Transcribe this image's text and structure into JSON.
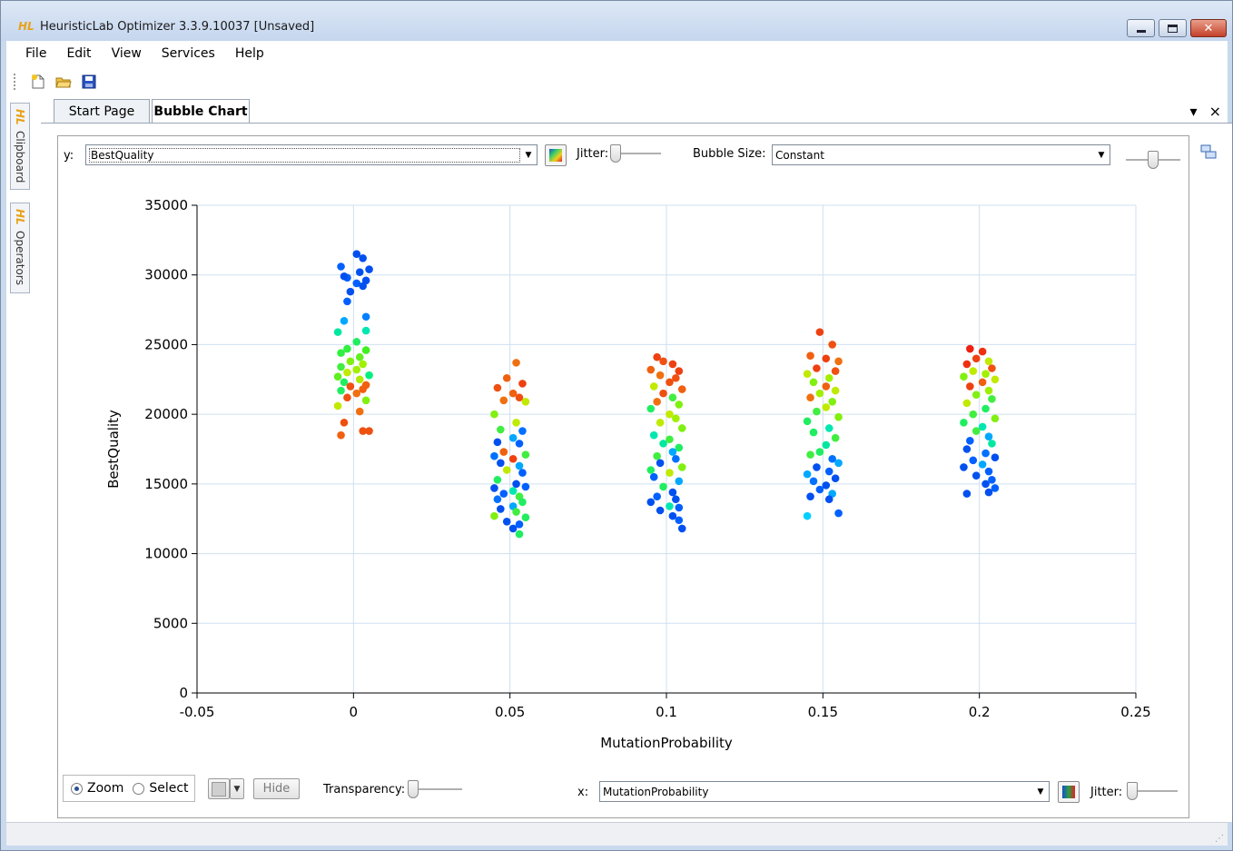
{
  "window": {
    "app_logo": "HL",
    "title": "HeuristicLab Optimizer 3.3.9.10037 [Unsaved]",
    "controls": [
      "minimize-icon",
      "maximize-icon",
      "close-icon"
    ]
  },
  "menu": {
    "items": [
      "File",
      "Edit",
      "View",
      "Services",
      "Help"
    ]
  },
  "toolbar": {
    "icons": [
      "new-icon",
      "open-icon",
      "save-icon"
    ]
  },
  "side_tabs": [
    {
      "logo": "HL",
      "label": "Clipboard"
    },
    {
      "logo": "HL",
      "label": "Operators"
    }
  ],
  "tabs": [
    {
      "label": "Start Page",
      "active": false
    },
    {
      "label": "Bubble Chart",
      "active": true
    }
  ],
  "doc_controls": {
    "pin": "▾",
    "close": "×"
  },
  "top_controls": {
    "y_label": "y:",
    "y_value": "BestQuality",
    "jitter_label": "Jitter:",
    "bubble_size_label": "Bubble Size:",
    "bubble_size_value": "Constant",
    "y_jitter": 0,
    "size_slider": 0.5
  },
  "bottom_controls": {
    "zoom_label": "Zoom",
    "select_label": "Select",
    "mode": "Zoom",
    "hide_label": "Hide",
    "transparency_label": "Transparency:",
    "transparency": 0,
    "x_label": "x:",
    "x_value": "MutationProbability",
    "jitter_label": "Jitter:",
    "x_jitter": 0
  },
  "chart_data": {
    "type": "scatter",
    "title": "",
    "xlabel": "MutationProbability",
    "ylabel": "BestQuality",
    "xlim": [
      -0.05,
      0.25
    ],
    "ylim": [
      0,
      35000
    ],
    "xticks": [
      "-0.05",
      "0",
      "0.05",
      "0.1",
      "0.15",
      "0.2",
      "0.25"
    ],
    "yticks": [
      "0",
      "5000",
      "10000",
      "15000",
      "20000",
      "25000",
      "30000",
      "35000"
    ],
    "grid": true,
    "color_note": "color gradient blue->green->yellow->red by secondary variable",
    "groups": [
      {
        "x": 0,
        "points": [
          [
            0.001,
            31500,
            "#0050f0"
          ],
          [
            0.003,
            31200,
            "#0050f0"
          ],
          [
            -0.004,
            30600,
            "#0060ff"
          ],
          [
            0.005,
            30400,
            "#0050f0"
          ],
          [
            0.002,
            30200,
            "#0050f0"
          ],
          [
            -0.002,
            29800,
            "#0060ff"
          ],
          [
            0.004,
            29600,
            "#0050f0"
          ],
          [
            0.001,
            29400,
            "#0060ff"
          ],
          [
            -0.003,
            29900,
            "#0050f0"
          ],
          [
            0.003,
            29200,
            "#0050f0"
          ],
          [
            -0.001,
            28800,
            "#0050f0"
          ],
          [
            -0.002,
            28100,
            "#0060ff"
          ],
          [
            0.004,
            27000,
            "#0080ff"
          ],
          [
            -0.003,
            26700,
            "#00a8ff"
          ],
          [
            0.004,
            26000,
            "#00e8b0"
          ],
          [
            -0.005,
            25900,
            "#00e8a0"
          ],
          [
            0.001,
            25200,
            "#20ee60"
          ],
          [
            -0.002,
            24700,
            "#30f040"
          ],
          [
            0.004,
            24600,
            "#40f020"
          ],
          [
            -0.004,
            24400,
            "#30f040"
          ],
          [
            0.002,
            24100,
            "#60f020"
          ],
          [
            -0.001,
            23800,
            "#80f010"
          ],
          [
            0.003,
            23600,
            "#a0f000"
          ],
          [
            -0.004,
            23400,
            "#40ee40"
          ],
          [
            0.001,
            23200,
            "#a0f000"
          ],
          [
            -0.002,
            23000,
            "#c0ea00"
          ],
          [
            0.005,
            22800,
            "#00f080"
          ],
          [
            -0.005,
            22700,
            "#60f020"
          ],
          [
            0.002,
            22500,
            "#b0ea00"
          ],
          [
            -0.003,
            22300,
            "#20ee60"
          ],
          [
            0.004,
            22100,
            "#f06010"
          ],
          [
            -0.001,
            22000,
            "#f05010"
          ],
          [
            0.003,
            21800,
            "#f06010"
          ],
          [
            -0.004,
            21700,
            "#20ee60"
          ],
          [
            0.001,
            21500,
            "#f07010"
          ],
          [
            -0.002,
            21200,
            "#ee5010"
          ],
          [
            0.004,
            21000,
            "#80f010"
          ],
          [
            -0.005,
            20600,
            "#c0ea00"
          ],
          [
            0.002,
            20200,
            "#f07010"
          ],
          [
            -0.003,
            19400,
            "#ee5010"
          ],
          [
            0.003,
            18800,
            "#f05010"
          ],
          [
            0.005,
            18800,
            "#ee5010"
          ],
          [
            -0.004,
            18500,
            "#f06010"
          ]
        ]
      },
      {
        "x": 0.05,
        "points": [
          [
            0.002,
            23700,
            "#f07010"
          ],
          [
            -0.001,
            22600,
            "#f06010"
          ],
          [
            0.004,
            22200,
            "#ee4010"
          ],
          [
            -0.004,
            21900,
            "#f05010"
          ],
          [
            0.001,
            21500,
            "#f06010"
          ],
          [
            0.003,
            21200,
            "#ee5010"
          ],
          [
            -0.002,
            21000,
            "#f07010"
          ],
          [
            0.005,
            20900,
            "#c0ea00"
          ],
          [
            -0.005,
            20000,
            "#80f010"
          ],
          [
            0.002,
            19400,
            "#c0ea00"
          ],
          [
            -0.003,
            18900,
            "#40ee40"
          ],
          [
            0.004,
            18800,
            "#0070ff"
          ],
          [
            0.001,
            18300,
            "#00a8ff"
          ],
          [
            -0.004,
            18000,
            "#0050f0"
          ],
          [
            0.003,
            17900,
            "#0060ff"
          ],
          [
            -0.002,
            17300,
            "#f06010"
          ],
          [
            0.005,
            17100,
            "#40ee40"
          ],
          [
            -0.005,
            17000,
            "#0070ff"
          ],
          [
            0.001,
            16800,
            "#ee4010"
          ],
          [
            -0.003,
            16500,
            "#0050f0"
          ],
          [
            0.003,
            16300,
            "#00a8ff"
          ],
          [
            -0.001,
            16000,
            "#c0ea00"
          ],
          [
            0.004,
            15800,
            "#0060ff"
          ],
          [
            -0.004,
            15300,
            "#20ee60"
          ],
          [
            0.002,
            15000,
            "#0050f0"
          ],
          [
            0.005,
            14800,
            "#0060ff"
          ],
          [
            -0.005,
            14700,
            "#0050f0"
          ],
          [
            0.001,
            14500,
            "#00e8b0"
          ],
          [
            -0.002,
            14300,
            "#0060ff"
          ],
          [
            0.003,
            14100,
            "#40ee40"
          ],
          [
            -0.004,
            13900,
            "#0070ff"
          ],
          [
            0.004,
            13700,
            "#20ee60"
          ],
          [
            0.001,
            13400,
            "#00a8ff"
          ],
          [
            -0.003,
            13200,
            "#0050f0"
          ],
          [
            0.002,
            13000,
            "#40ee40"
          ],
          [
            -0.005,
            12700,
            "#80f010"
          ],
          [
            0.005,
            12600,
            "#20ee60"
          ],
          [
            -0.001,
            12300,
            "#0050f0"
          ],
          [
            0.003,
            12100,
            "#0060ff"
          ],
          [
            0.001,
            11800,
            "#0050f0"
          ],
          [
            0.003,
            11400,
            "#20ee60"
          ]
        ]
      },
      {
        "x": 0.1,
        "points": [
          [
            -0.003,
            24100,
            "#ee4010"
          ],
          [
            -0.001,
            23800,
            "#f05010"
          ],
          [
            0.002,
            23600,
            "#ee4010"
          ],
          [
            -0.005,
            23200,
            "#f06010"
          ],
          [
            0.004,
            23100,
            "#ee4010"
          ],
          [
            -0.002,
            22800,
            "#f07010"
          ],
          [
            0.003,
            22600,
            "#f05010"
          ],
          [
            0.001,
            22300,
            "#ee5010"
          ],
          [
            -0.004,
            22000,
            "#c0ea00"
          ],
          [
            0.005,
            21800,
            "#f06010"
          ],
          [
            -0.001,
            21500,
            "#ee5010"
          ],
          [
            0.002,
            21200,
            "#40ee40"
          ],
          [
            -0.003,
            20900,
            "#f07010"
          ],
          [
            0.004,
            20700,
            "#80f010"
          ],
          [
            -0.005,
            20400,
            "#20ee60"
          ],
          [
            0.001,
            20000,
            "#c0ea00"
          ],
          [
            0.003,
            19700,
            "#a0f000"
          ],
          [
            -0.002,
            19400,
            "#c0ea00"
          ],
          [
            0.005,
            19000,
            "#80f010"
          ],
          [
            -0.004,
            18500,
            "#00e8b0"
          ],
          [
            0.001,
            18200,
            "#40ee40"
          ],
          [
            -0.001,
            17900,
            "#00e8a0"
          ],
          [
            0.004,
            17600,
            "#20ee60"
          ],
          [
            0.002,
            17300,
            "#00a8ff"
          ],
          [
            -0.003,
            17000,
            "#40ee40"
          ],
          [
            0.003,
            16800,
            "#0070ff"
          ],
          [
            -0.002,
            16500,
            "#0050f0"
          ],
          [
            0.005,
            16200,
            "#80f010"
          ],
          [
            -0.005,
            16000,
            "#20ee60"
          ],
          [
            0.001,
            15800,
            "#c0ea00"
          ],
          [
            -0.004,
            15500,
            "#0060ff"
          ],
          [
            0.004,
            15200,
            "#00a8ff"
          ],
          [
            -0.001,
            14800,
            "#20ee60"
          ],
          [
            0.002,
            14400,
            "#0050f0"
          ],
          [
            -0.003,
            14100,
            "#0060ff"
          ],
          [
            0.003,
            13900,
            "#0050f0"
          ],
          [
            -0.005,
            13700,
            "#0050f0"
          ],
          [
            0.001,
            13400,
            "#00e8b0"
          ],
          [
            0.004,
            13300,
            "#0060ff"
          ],
          [
            -0.002,
            13100,
            "#0050f0"
          ],
          [
            0.002,
            12700,
            "#0050f0"
          ],
          [
            0.004,
            12400,
            "#0060ff"
          ],
          [
            0.005,
            11800,
            "#0050f0"
          ]
        ]
      },
      {
        "x": 0.15,
        "points": [
          [
            -0.001,
            25900,
            "#ee4010"
          ],
          [
            0.003,
            25000,
            "#f05010"
          ],
          [
            -0.004,
            24200,
            "#f06010"
          ],
          [
            0.001,
            24000,
            "#ee4010"
          ],
          [
            0.005,
            23800,
            "#f07010"
          ],
          [
            -0.002,
            23300,
            "#ee4010"
          ],
          [
            0.004,
            23100,
            "#f05010"
          ],
          [
            -0.005,
            22900,
            "#c0ea00"
          ],
          [
            0.002,
            22600,
            "#a0f000"
          ],
          [
            -0.003,
            22300,
            "#80f010"
          ],
          [
            0.001,
            22000,
            "#f06010"
          ],
          [
            0.004,
            21700,
            "#c0ea00"
          ],
          [
            -0.001,
            21500,
            "#a0f000"
          ],
          [
            -0.004,
            21200,
            "#f07010"
          ],
          [
            0.003,
            20900,
            "#80f010"
          ],
          [
            0.001,
            20500,
            "#c0ea00"
          ],
          [
            -0.002,
            20200,
            "#40ee40"
          ],
          [
            0.005,
            19800,
            "#80f010"
          ],
          [
            -0.005,
            19500,
            "#20ee60"
          ],
          [
            0.002,
            19000,
            "#00e8b0"
          ],
          [
            -0.003,
            18700,
            "#20ee60"
          ],
          [
            0.004,
            18300,
            "#40ee40"
          ],
          [
            0.001,
            17800,
            "#00e8a0"
          ],
          [
            -0.001,
            17300,
            "#20ee60"
          ],
          [
            -0.004,
            17100,
            "#40ee40"
          ],
          [
            0.003,
            16800,
            "#0070ff"
          ],
          [
            0.005,
            16500,
            "#00a8ff"
          ],
          [
            -0.002,
            16200,
            "#0050f0"
          ],
          [
            0.002,
            15900,
            "#0060ff"
          ],
          [
            -0.005,
            15700,
            "#00a8ff"
          ],
          [
            0.004,
            15400,
            "#0050f0"
          ],
          [
            -0.003,
            15200,
            "#0070ff"
          ],
          [
            0.001,
            14900,
            "#0050f0"
          ],
          [
            -0.001,
            14600,
            "#0060ff"
          ],
          [
            0.003,
            14300,
            "#00a8ff"
          ],
          [
            -0.004,
            14100,
            "#0050f0"
          ],
          [
            0.002,
            13900,
            "#0050f0"
          ],
          [
            -0.005,
            12700,
            "#00d0ff"
          ],
          [
            0.005,
            12900,
            "#0060ff"
          ]
        ]
      },
      {
        "x": 0.2,
        "points": [
          [
            -0.003,
            24700,
            "#ee2010"
          ],
          [
            0.001,
            24500,
            "#ee3010"
          ],
          [
            -0.001,
            24000,
            "#ee4010"
          ],
          [
            0.003,
            23800,
            "#c0ea00"
          ],
          [
            -0.004,
            23600,
            "#ee3010"
          ],
          [
            0.004,
            23300,
            "#f05010"
          ],
          [
            -0.002,
            23100,
            "#c0ea00"
          ],
          [
            0.002,
            22900,
            "#a0f000"
          ],
          [
            -0.005,
            22700,
            "#80f010"
          ],
          [
            0.005,
            22500,
            "#c0ea00"
          ],
          [
            0.001,
            22300,
            "#f06010"
          ],
          [
            -0.003,
            22000,
            "#ee4010"
          ],
          [
            0.003,
            21700,
            "#a0f000"
          ],
          [
            -0.001,
            21400,
            "#80f010"
          ],
          [
            0.004,
            21100,
            "#40ee40"
          ],
          [
            -0.004,
            20800,
            "#c0ea00"
          ],
          [
            0.002,
            20400,
            "#20ee60"
          ],
          [
            -0.002,
            20000,
            "#40ee40"
          ],
          [
            0.005,
            19700,
            "#80f010"
          ],
          [
            -0.005,
            19400,
            "#20ee60"
          ],
          [
            0.001,
            19100,
            "#00e8b0"
          ],
          [
            -0.001,
            18800,
            "#40ee40"
          ],
          [
            0.003,
            18400,
            "#00a8ff"
          ],
          [
            -0.003,
            18100,
            "#0060ff"
          ],
          [
            0.004,
            17900,
            "#00e8a0"
          ],
          [
            -0.004,
            17500,
            "#0050f0"
          ],
          [
            0.002,
            17200,
            "#0070ff"
          ],
          [
            0.005,
            16900,
            "#0050f0"
          ],
          [
            -0.002,
            16700,
            "#0060ff"
          ],
          [
            0.001,
            16400,
            "#00a8ff"
          ],
          [
            -0.005,
            16200,
            "#0050f0"
          ],
          [
            0.003,
            15900,
            "#0060ff"
          ],
          [
            -0.001,
            15600,
            "#0050f0"
          ],
          [
            0.004,
            15300,
            "#0060ff"
          ],
          [
            0.002,
            15000,
            "#0050f0"
          ],
          [
            0.005,
            14700,
            "#0060ff"
          ],
          [
            0.003,
            14400,
            "#0050f0"
          ],
          [
            -0.004,
            14300,
            "#0050f0"
          ]
        ]
      }
    ]
  }
}
